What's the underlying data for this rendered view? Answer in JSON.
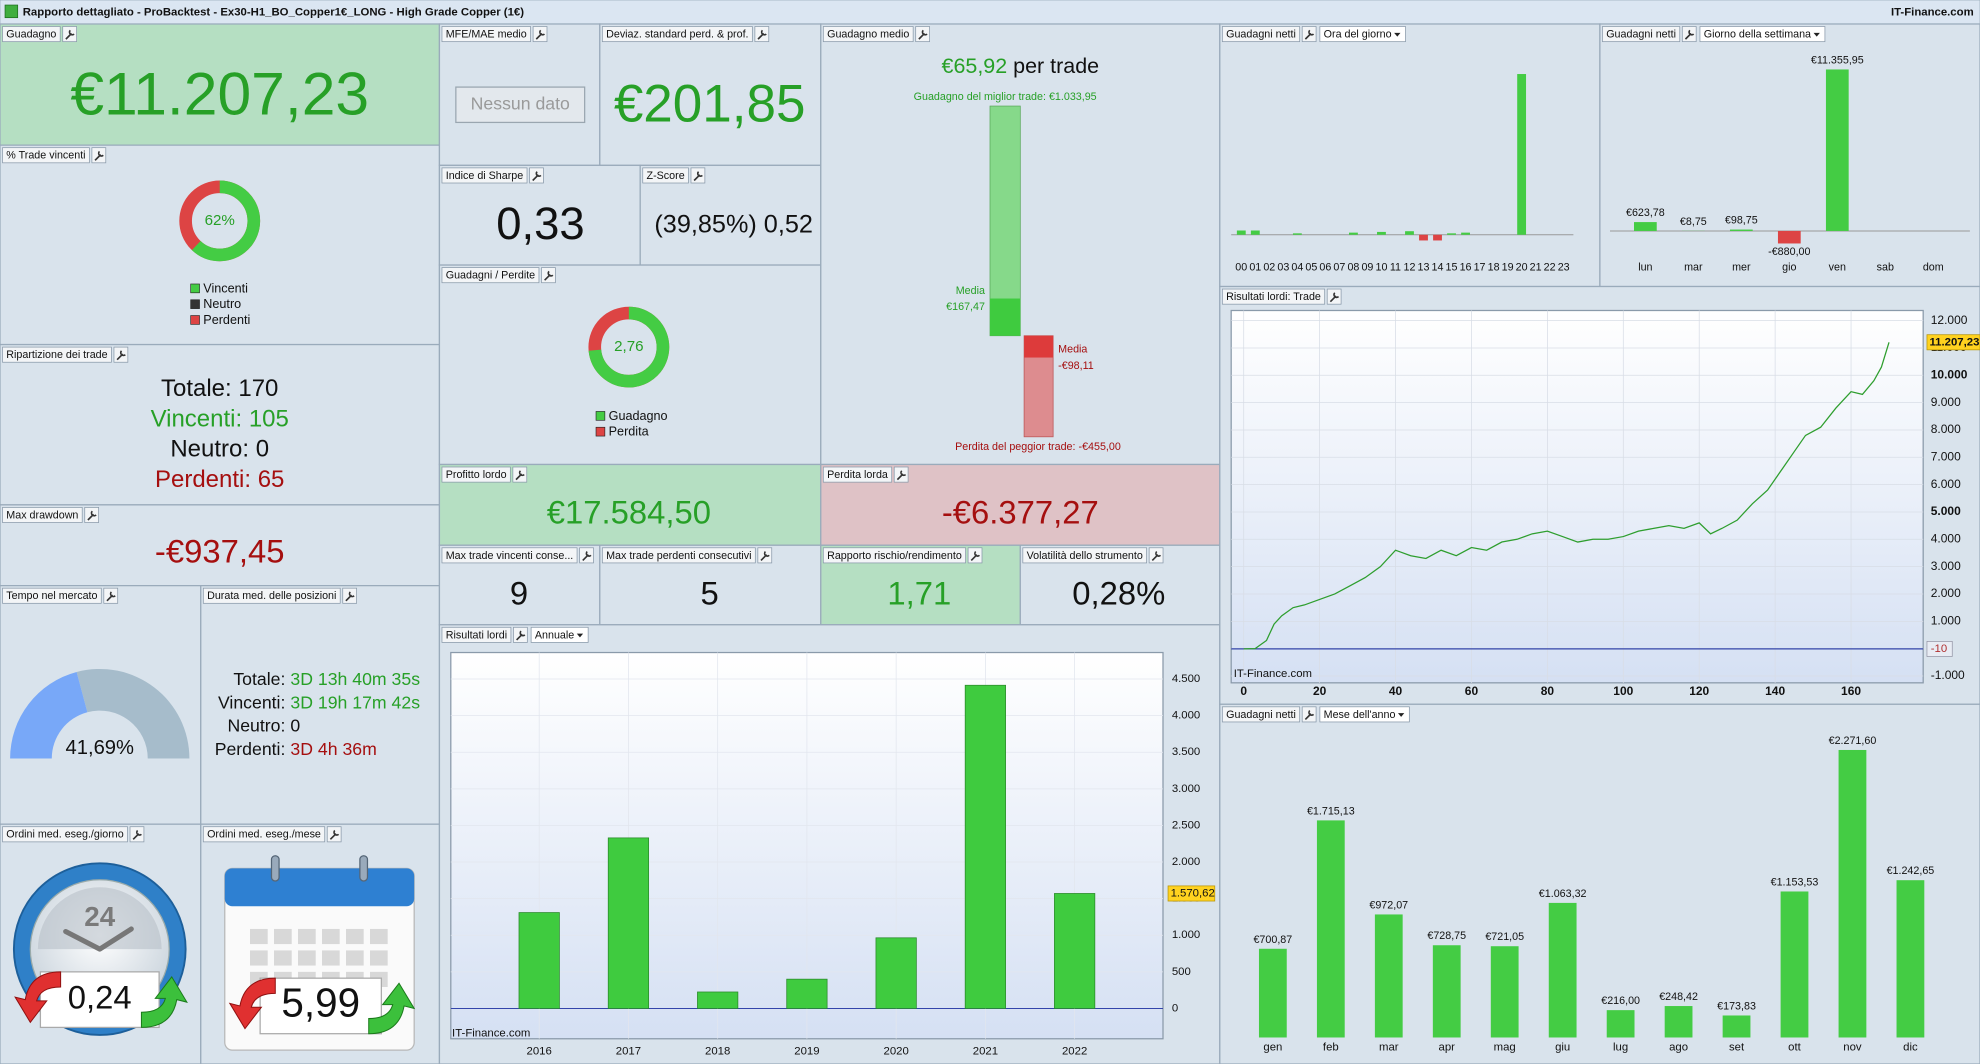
{
  "window_title": "Rapporto dettagliato - ProBacktest - Ex30-H1_BO_Copper1€_LONG - High Grade Copper (1€)",
  "brand": "IT-Finance.com",
  "gain": {
    "label": "Guadagno",
    "value": "€11.207,23"
  },
  "win_rate": {
    "label": "% Trade vincenti",
    "value": 62,
    "value_label": "62%",
    "legend": [
      "Vincenti",
      "Neutro",
      "Perdenti"
    ]
  },
  "trade_breakdown": {
    "label": "Ripartizione dei trade",
    "rows": [
      {
        "label": "Totale:",
        "value": 170
      },
      {
        "label": "Vincenti:",
        "value": 105
      },
      {
        "label": "Neutro:",
        "value": 0
      },
      {
        "label": "Perdenti:",
        "value": 65
      }
    ]
  },
  "max_drawdown": {
    "label": "Max drawdown",
    "value": "-€937,45"
  },
  "time_in_market": {
    "label": "Tempo nel mercato",
    "value": 41.69,
    "value_label": "41,69%"
  },
  "avg_duration": {
    "label": "Durata med. delle posizioni",
    "rows": [
      {
        "label": "Totale:",
        "value": "3D 13h 40m 35s"
      },
      {
        "label": "Vincenti:",
        "value": "3D 19h 17m 42s"
      },
      {
        "label": "Neutro:",
        "value": "0"
      },
      {
        "label": "Perdenti:",
        "value": "3D 4h 36m"
      }
    ]
  },
  "orders_per_day": {
    "label": "Ordini med. eseg./giorno",
    "clock_label": "24",
    "value": "0,24"
  },
  "orders_per_month": {
    "label": "Ordini med. eseg./mese",
    "value": "5,99"
  },
  "mfe_mae": {
    "label": "MFE/MAE medio",
    "value": "Nessun dato"
  },
  "std_dev": {
    "label": "Deviaz. standard perd. & prof.",
    "value": "€201,85"
  },
  "sharpe": {
    "label": "Indice di Sharpe",
    "value": "0,33"
  },
  "z_score": {
    "label": "Z-Score",
    "value": "(39,85%) 0,52"
  },
  "gain_loss": {
    "label": "Guadagni / Perdite",
    "value": 2.76,
    "value_label": "2,76",
    "legend": [
      "Guadagno",
      "Perdita"
    ]
  },
  "avg_gain": {
    "label": "Guadagno medio",
    "value": "€65,92",
    "suffix": "per trade",
    "best": {
      "label": "Guadagno del miglior trade:",
      "value": 1033.95,
      "value_label": "€1.033,95"
    },
    "avg_win": {
      "label": "Media",
      "value": 167.47,
      "value_label": "€167,47"
    },
    "avg_loss": {
      "label": "Media",
      "value": -98.11,
      "value_label": "-€98,11"
    },
    "worst": {
      "label": "Perdita del peggior trade:",
      "value": -455,
      "value_label": "-€455,00"
    }
  },
  "gross_profit": {
    "label": "Profitto lordo",
    "value": "€17.584,50"
  },
  "gross_loss": {
    "label": "Perdita lorda",
    "value": "-€6.377,27"
  },
  "max_win_streak": {
    "label": "Max trade vincenti conse...",
    "value": 9
  },
  "max_loss_streak": {
    "label": "Max trade perdenti consecutivi",
    "value": 5
  },
  "risk_reward": {
    "label": "Rapporto rischio/rendimento",
    "value": "1,71"
  },
  "volatility": {
    "label": "Volatilità dello strumento",
    "value": "0,28%"
  },
  "annual": {
    "label": "Risultati lordi",
    "selector": "Annuale",
    "chart_data": {
      "type": "bar",
      "categories": [
        "2016",
        "2017",
        "2018",
        "2019",
        "2020",
        "2021",
        "2022"
      ],
      "values": [
        1310,
        2330,
        225,
        400,
        965,
        4415,
        1570.62
      ],
      "color": "#3fcb3f",
      "negative_color": "#dd4444",
      "current_label": "1.570,62",
      "ylim": [
        -414,
        4862
      ],
      "yticks": [
        0,
        500,
        {
          "value": 1000,
          "label": "1.000"
        },
        {
          "value": 1500,
          "label": "1.500"
        },
        {
          "value": 2000,
          "label": "2.000"
        },
        {
          "value": 2500,
          "label": "2.500"
        },
        {
          "value": 3000,
          "label": "3.000"
        },
        {
          "value": 3500,
          "label": "3.500"
        },
        {
          "value": 4000,
          "label": "4.000"
        },
        {
          "value": 4500,
          "label": "4.500"
        }
      ]
    }
  },
  "hourly": {
    "label": "Guadagni netti",
    "selector": "Ora del giorno",
    "chart_data": {
      "type": "bar",
      "categories": [
        "00",
        "01",
        "02",
        "03",
        "04",
        "05",
        "06",
        "07",
        "08",
        "09",
        "10",
        "11",
        "12",
        "13",
        "14",
        "15",
        "16",
        "17",
        "18",
        "19",
        "20",
        "21",
        "22",
        "23"
      ],
      "values": [
        300,
        300,
        0,
        0,
        100,
        0,
        0,
        0,
        150,
        0,
        200,
        0,
        250,
        -400,
        -400,
        100,
        150,
        0,
        0,
        0,
        11300,
        0,
        0,
        0
      ],
      "color": "#44cc44",
      "negative_color": "#dd4444",
      "ylim": [
        -1242,
        12955
      ]
    }
  },
  "weekday": {
    "label": "Guadagni netti",
    "selector": "Giorno della settimana",
    "chart_data": {
      "type": "bar",
      "categories": [
        "lun",
        "mar",
        "mer",
        "gio",
        "ven",
        "sab",
        "dom"
      ],
      "values": [
        623.78,
        8.75,
        98.75,
        -880,
        11355.95,
        null,
        null
      ],
      "value_labels": [
        "€623,78",
        "€8,75",
        "€98,75",
        "-€880,00",
        "€11.355,95",
        null,
        null
      ],
      "color": "#44cc44",
      "negative_color": "#dd4444",
      "ylim": [
        -1510,
        12690
      ]
    }
  },
  "equity": {
    "label": "Risultati lordi: Trade",
    "chart_data": {
      "type": "line",
      "x": [
        0,
        3,
        6,
        8,
        10,
        13,
        16,
        20,
        24,
        28,
        32,
        36,
        40,
        44,
        48,
        52,
        56,
        60,
        64,
        68,
        72,
        76,
        80,
        84,
        88,
        92,
        96,
        100,
        104,
        108,
        112,
        116,
        120,
        123,
        126,
        130,
        134,
        138,
        142,
        145,
        148,
        152,
        156,
        160,
        163,
        166,
        168,
        170
      ],
      "values": [
        -10,
        0,
        300,
        900,
        1200,
        1500,
        1600,
        1800,
        2000,
        2300,
        2600,
        3000,
        3600,
        3400,
        3300,
        3600,
        3400,
        3700,
        3600,
        3900,
        4000,
        4200,
        4300,
        4100,
        3900,
        4000,
        4000,
        4100,
        4300,
        4400,
        4500,
        4400,
        4600,
        4200,
        4400,
        4700,
        5300,
        5800,
        6600,
        7200,
        7800,
        8100,
        8800,
        9400,
        9300,
        9800,
        10300,
        11207.23
      ],
      "color": "#2e9e2e",
      "end_label": "11.207,23",
      "baseline": {
        "value": -10,
        "label": "-10"
      },
      "xlim": [
        -3.3,
        179
      ],
      "ylim": [
        -1250,
        12370
      ],
      "xticks": [
        0,
        20,
        40,
        60,
        80,
        100,
        120,
        140,
        160
      ],
      "yticks": [
        {
          "value": -1000,
          "label": "-1.000"
        },
        0,
        {
          "value": 1000,
          "label": "1.000"
        },
        {
          "value": 2000,
          "label": "2.000"
        },
        {
          "value": 3000,
          "label": "3.000"
        },
        {
          "value": 4000,
          "label": "4.000"
        },
        {
          "value": 5000,
          "label": "5.000"
        },
        {
          "value": 6000,
          "label": "6.000"
        },
        {
          "value": 7000,
          "label": "7.000"
        },
        {
          "value": 8000,
          "label": "8.000"
        },
        {
          "value": 9000,
          "label": "9.000"
        },
        {
          "value": 10000,
          "label": "10.000"
        },
        {
          "value": 11000,
          "label": "11.000"
        },
        {
          "value": 12000,
          "label": "12.000"
        }
      ],
      "grid": true
    }
  },
  "monthly": {
    "label": "Guadagni netti",
    "selector": "Mese dell'anno",
    "chart_data": {
      "type": "bar",
      "categories": [
        "gen",
        "feb",
        "mar",
        "apr",
        "mag",
        "giu",
        "lug",
        "ago",
        "set",
        "ott",
        "nov",
        "dic"
      ],
      "values": [
        700.87,
        1715.13,
        972.07,
        728.75,
        721.05,
        1063.32,
        216,
        248.42,
        173.83,
        1153.53,
        2271.6,
        1242.65
      ],
      "value_labels": [
        "€700,87",
        "€1.715,13",
        "€972,07",
        "€728,75",
        "€721,05",
        "€1.063,32",
        "€216,00",
        "€248,42",
        "€173,83",
        "€1.153,53",
        "€2.271,60",
        "€1.242,65"
      ],
      "color": "#44cc44",
      "negative_color": "#dd4444",
      "ylim": [
        -30,
        2463
      ]
    }
  }
}
